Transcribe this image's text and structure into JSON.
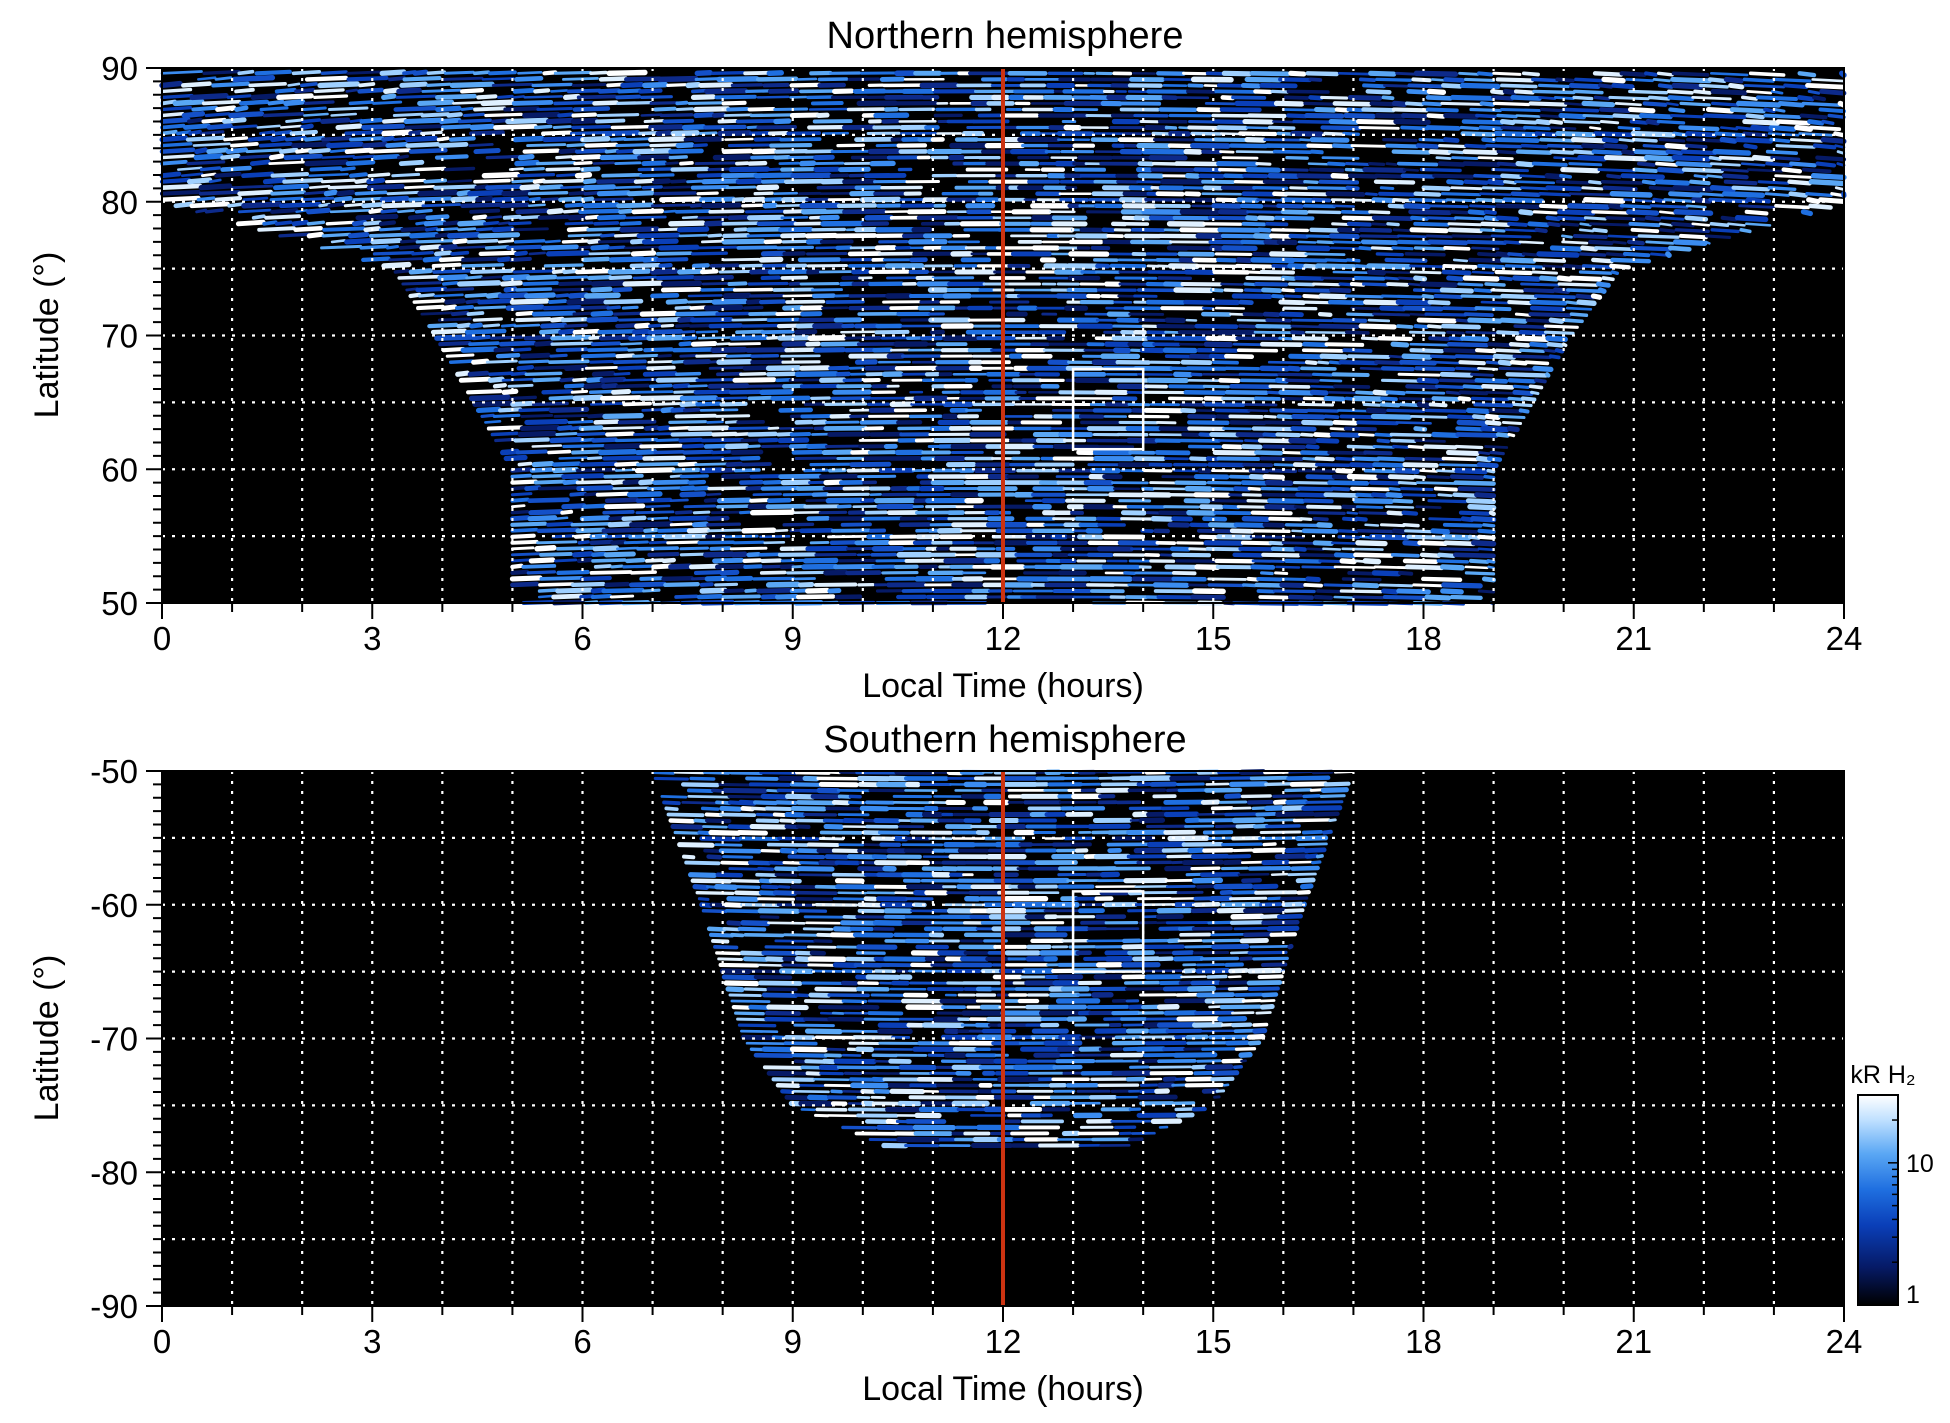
{
  "chart_data": [
    {
      "type": "heatmap",
      "title": "Northern hemisphere",
      "xlabel": "Local Time (hours)",
      "ylabel": "Latitude (°)",
      "xlim": [
        0,
        24
      ],
      "ylim": [
        50,
        90
      ],
      "xticks": [
        "0",
        "3",
        "6",
        "9",
        "12",
        "15",
        "18",
        "21",
        "24"
      ],
      "yticks": [
        "50",
        "60",
        "70",
        "80",
        "90"
      ],
      "grid": true,
      "noon_line_x": 12,
      "highlight_box": {
        "x": [
          13,
          14
        ],
        "y": [
          61.5,
          67.5
        ]
      },
      "coverage_edge": [
        {
          "lat": 50,
          "lt_start": 5.0,
          "lt_end": 19.0
        },
        {
          "lat": 60,
          "lt_start": 5.0,
          "lt_end": 19.0
        },
        {
          "lat": 70,
          "lt_start": 3.9,
          "lt_end": 20.1
        },
        {
          "lat": 75,
          "lt_start": 3.3,
          "lt_end": 20.8
        },
        {
          "lat": 80,
          "lt_start": 0.0,
          "lt_end": 24.0
        },
        {
          "lat": 90,
          "lt_start": 0.0,
          "lt_end": 24.0
        }
      ]
    },
    {
      "type": "heatmap",
      "title": "Southern hemisphere",
      "xlabel": "Local Time (hours)",
      "ylabel": "Latitude (°)",
      "xlim": [
        0,
        24
      ],
      "ylim": [
        -90,
        -50
      ],
      "xticks": [
        "0",
        "3",
        "6",
        "9",
        "12",
        "15",
        "18",
        "21",
        "24"
      ],
      "yticks": [
        "-50",
        "-60",
        "-70",
        "-80",
        "-90"
      ],
      "grid": true,
      "noon_line_x": 12,
      "highlight_box": {
        "x": [
          13,
          14
        ],
        "y": [
          -65,
          -59
        ]
      },
      "coverage_edge": [
        {
          "lat": -50,
          "lt_start": 7.0,
          "lt_end": 17.0
        },
        {
          "lat": -60,
          "lt_start": 7.7,
          "lt_end": 16.3
        },
        {
          "lat": -70,
          "lt_start": 8.3,
          "lt_end": 15.7
        },
        {
          "lat": -75,
          "lt_start": 9.0,
          "lt_end": 15.0
        },
        {
          "lat": -78,
          "lt_start": 10.3,
          "lt_end": 13.8
        }
      ]
    }
  ],
  "colorbar": {
    "label": "kR H₂",
    "ticks": [
      "1",
      "10"
    ],
    "scale": "log",
    "colors": [
      "#000000",
      "#061a66",
      "#0a3fb8",
      "#1f6fe0",
      "#5aa7f4",
      "#bfe0ff",
      "#ffffff"
    ]
  },
  "colors": {
    "noon_line": "#cc3311",
    "grid": "#ffffff",
    "background": "#000000",
    "box": "#ffffff"
  }
}
